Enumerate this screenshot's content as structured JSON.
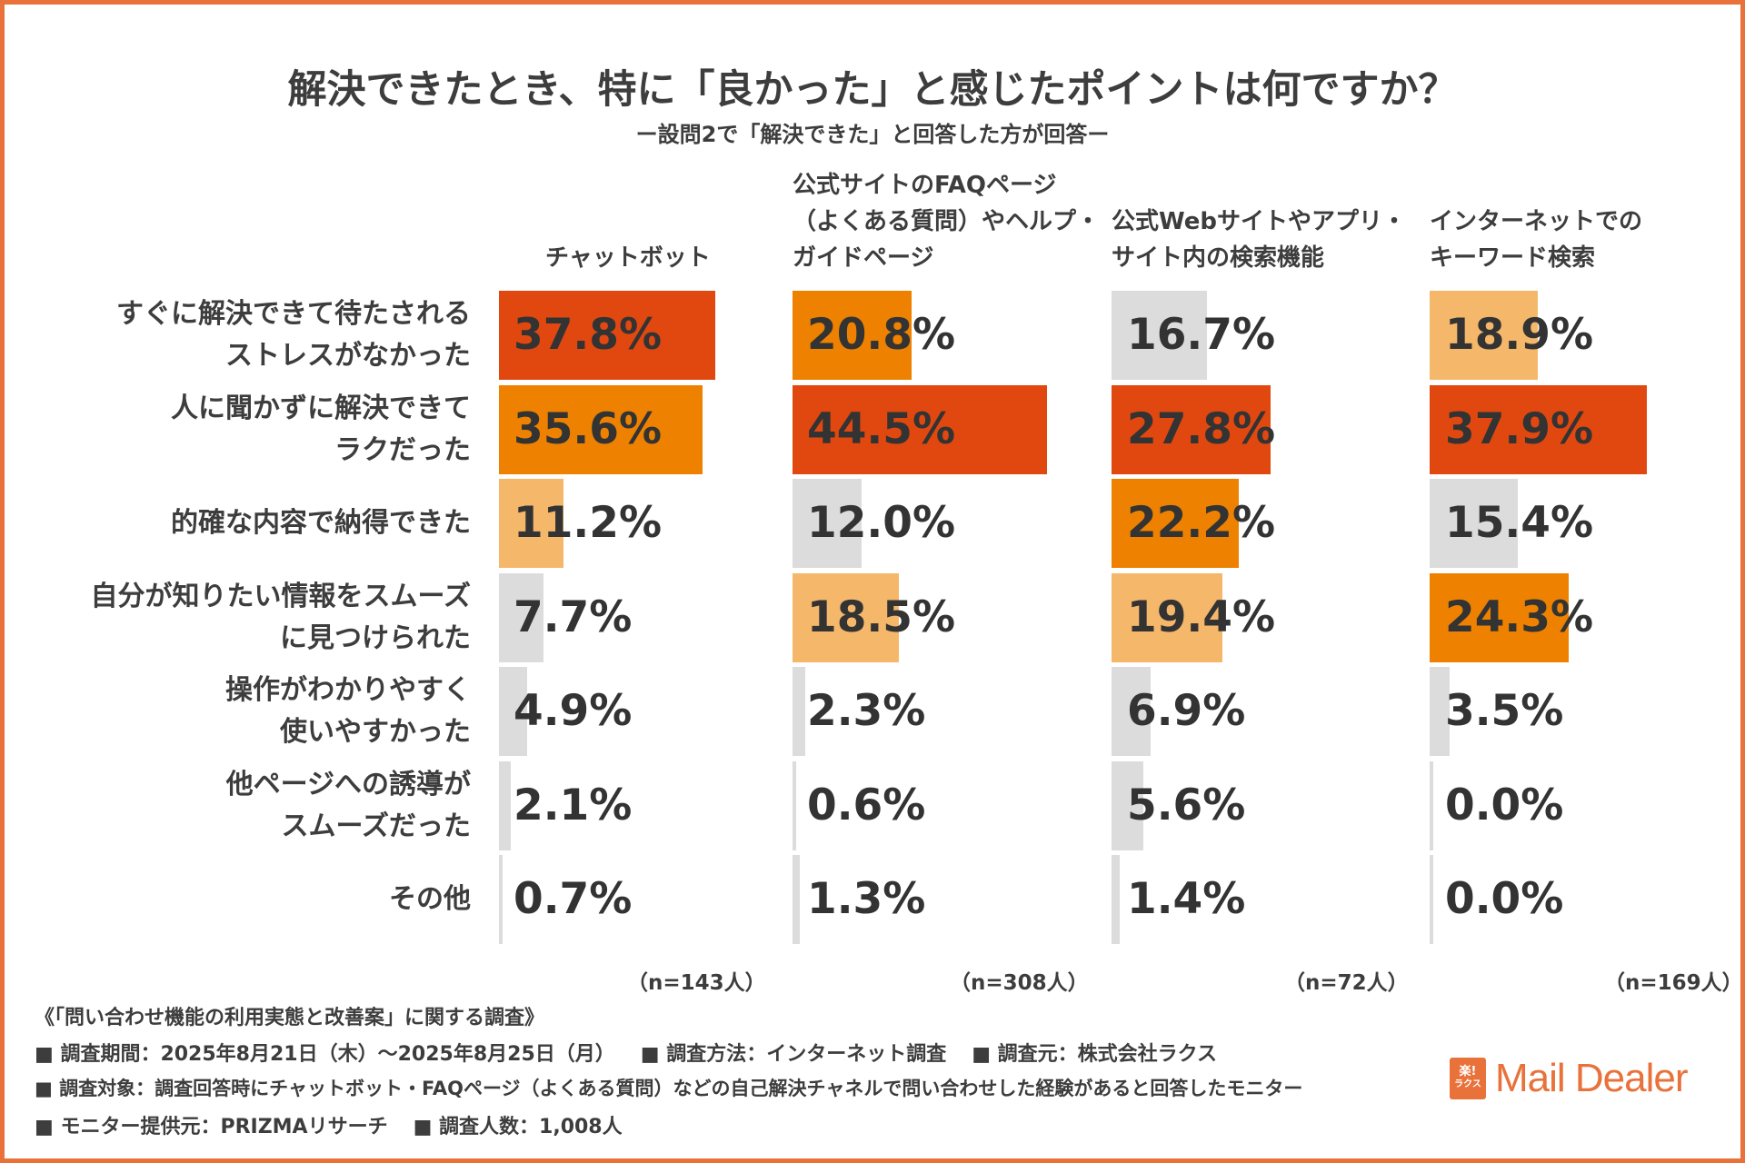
{
  "chart_data": {
    "type": "bar",
    "orientation": "horizontal",
    "title": "解決できたとき、特に「良かった」と感じたポイントは何ですか？",
    "subtitle": "ー設問2で「解決できた」と回答した方が回答ー",
    "categories": [
      "すぐに解決できて待たされる\nストレスがなかった",
      "人に聞かずに解決できて\nラクだった",
      "的確な内容で納得できた",
      "自分が知りたい情報をスムーズ\nに見つけられた",
      "操作がわかりやすく\n使いやすかった",
      "他ページへの誘導が\nスムーズだった",
      "その他"
    ],
    "series": [
      {
        "name": "チャットボット",
        "n_label": "（n=143人）",
        "values": [
          37.8,
          35.6,
          11.2,
          7.7,
          4.9,
          2.1,
          0.7
        ],
        "labels": [
          "37.8%",
          "35.6%",
          "11.2%",
          "7.7%",
          "4.9%",
          "2.1%",
          "0.7%"
        ]
      },
      {
        "name": "公式サイトのFAQページ\n（よくある質問）やヘルプ・\nガイドページ",
        "n_label": "（n=308人）",
        "values": [
          20.8,
          44.5,
          12.0,
          18.5,
          2.3,
          0.6,
          1.3
        ],
        "labels": [
          "20.8%",
          "44.5%",
          "12.0%",
          "18.5%",
          "2.3%",
          "0.6%",
          "1.3%"
        ]
      },
      {
        "name": "公式Webサイトやアプリ・\nサイト内の検索機能",
        "n_label": "（n=72人）",
        "values": [
          16.7,
          27.8,
          22.2,
          19.4,
          6.9,
          5.6,
          1.4
        ],
        "labels": [
          "16.7%",
          "27.8%",
          "22.2%",
          "19.4%",
          "6.9%",
          "5.6%",
          "1.4%"
        ]
      },
      {
        "name": "インターネットでの\nキーワード検索",
        "n_label": "（n=169人）",
        "values": [
          18.9,
          37.9,
          15.4,
          24.3,
          3.5,
          0.0,
          0.0
        ],
        "labels": [
          "18.9%",
          "37.9%",
          "15.4%",
          "24.3%",
          "3.5%",
          "0.0%",
          "0.0%"
        ]
      }
    ],
    "highlight_colors": {
      "rank1": "#e04810",
      "rank2": "#ee8200",
      "rank3": "#f5b76a",
      "other": "#dcdcdc"
    },
    "xlim": [
      0,
      100
    ],
    "grid": false
  },
  "footer": {
    "survey_name": "《「問い合わせ機能の利用実態と改善案」に関する調査》",
    "line1_a": "■ 調査期間：2025年8月21日（木）～2025年8月25日（月）",
    "line1_b": "■ 調査方法：インターネット調査",
    "line1_c": "■ 調査元：株式会社ラクス",
    "line2": "■ 調査対象：調査回答時にチャットボット・FAQページ（よくある質問）などの自己解決チャネルで問い合わせした経験があると回答したモニター",
    "line3_a": "■ モニター提供元：PRIZMAリサーチ",
    "line3_b": "■ 調査人数：1,008人"
  },
  "logo": {
    "mark_top": "楽!",
    "mark_bottom": "ラクス",
    "text": "Mail Dealer"
  }
}
